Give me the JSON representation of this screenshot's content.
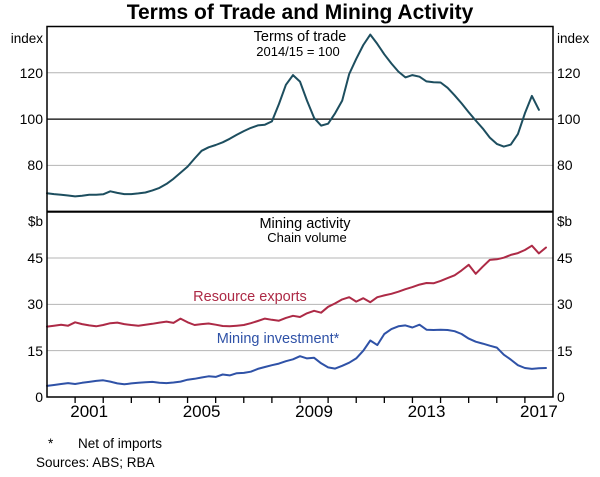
{
  "title": "Terms of Trade and Mining Activity",
  "footnotes": {
    "marker": "*",
    "text": "Net of imports",
    "sources": "Sources: ABS; RBA"
  },
  "colors": {
    "frame": "#000000",
    "grid": "#b4b4b4",
    "terms_of_trade": "#1d4e5f",
    "resource_exports": "#ad2a46",
    "mining_investment": "#2f52a7"
  },
  "x_axis": {
    "min": 2000,
    "max": 2018,
    "tick_years": [
      2001,
      2002,
      2003,
      2004,
      2005,
      2006,
      2007,
      2008,
      2009,
      2010,
      2011,
      2012,
      2013,
      2014,
      2015,
      2016,
      2017
    ],
    "label_years": [
      2001,
      2005,
      2009,
      2013,
      2017
    ]
  },
  "chart_data": [
    {
      "type": "line",
      "panel": "top",
      "label": "Terms of trade",
      "sublabel": "2014/15 = 100",
      "unit": "index",
      "ylim": [
        60,
        140
      ],
      "yticks": [
        80,
        100,
        120
      ],
      "reference_line": 100,
      "grid": true,
      "series": [
        {
          "name": "Terms of trade",
          "color_key": "terms_of_trade",
          "points": [
            [
              2000,
              68
            ],
            [
              2000.25,
              67.6
            ],
            [
              2000.5,
              67.3
            ],
            [
              2000.75,
              67
            ],
            [
              2001,
              66.6
            ],
            [
              2001.25,
              66.9
            ],
            [
              2001.5,
              67.3
            ],
            [
              2001.75,
              67.3
            ],
            [
              2002,
              67.5
            ],
            [
              2002.25,
              68.8
            ],
            [
              2002.5,
              68.1
            ],
            [
              2002.75,
              67.6
            ],
            [
              2003,
              67.6
            ],
            [
              2003.25,
              67.9
            ],
            [
              2003.5,
              68.3
            ],
            [
              2003.75,
              69.2
            ],
            [
              2004,
              70.3
            ],
            [
              2004.25,
              72
            ],
            [
              2004.5,
              74.2
            ],
            [
              2004.75,
              76.8
            ],
            [
              2005,
              79.5
            ],
            [
              2005.25,
              83
            ],
            [
              2005.5,
              86.3
            ],
            [
              2005.75,
              87.8
            ],
            [
              2006,
              88.8
            ],
            [
              2006.25,
              90
            ],
            [
              2006.5,
              91.5
            ],
            [
              2006.75,
              93.2
            ],
            [
              2007,
              94.8
            ],
            [
              2007.25,
              96.2
            ],
            [
              2007.5,
              97.3
            ],
            [
              2007.75,
              97.6
            ],
            [
              2008,
              99
            ],
            [
              2008.25,
              106.5
            ],
            [
              2008.5,
              114.8
            ],
            [
              2008.75,
              119
            ],
            [
              2009,
              116.2
            ],
            [
              2009.25,
              108
            ],
            [
              2009.5,
              100.5
            ],
            [
              2009.75,
              97.2
            ],
            [
              2010,
              98
            ],
            [
              2010.25,
              102.5
            ],
            [
              2010.5,
              108
            ],
            [
              2010.75,
              119.5
            ],
            [
              2011,
              126
            ],
            [
              2011.25,
              132
            ],
            [
              2011.5,
              136.5
            ],
            [
              2011.75,
              132.5
            ],
            [
              2012,
              128
            ],
            [
              2012.25,
              124
            ],
            [
              2012.5,
              120.5
            ],
            [
              2012.75,
              118
            ],
            [
              2013,
              119
            ],
            [
              2013.25,
              118.3
            ],
            [
              2013.5,
              116.3
            ],
            [
              2013.75,
              115.9
            ],
            [
              2014,
              115.8
            ],
            [
              2014.25,
              113.5
            ],
            [
              2014.5,
              110.3
            ],
            [
              2014.75,
              106.8
            ],
            [
              2015,
              103
            ],
            [
              2015.25,
              99.4
            ],
            [
              2015.5,
              96
            ],
            [
              2015.75,
              92
            ],
            [
              2016,
              89.3
            ],
            [
              2016.25,
              88.1
            ],
            [
              2016.5,
              89
            ],
            [
              2016.75,
              93.5
            ],
            [
              2017,
              102.5
            ],
            [
              2017.25,
              110
            ],
            [
              2017.5,
              104
            ]
          ]
        }
      ]
    },
    {
      "type": "line",
      "panel": "bottom",
      "label": "Mining activity",
      "sublabel": "Chain volume",
      "unit": "$b",
      "ylim": [
        0,
        60
      ],
      "yticks": [
        0,
        15,
        30,
        45
      ],
      "grid": true,
      "series": [
        {
          "name": "Resource exports",
          "color_key": "resource_exports",
          "points": [
            [
              2000,
              22.8
            ],
            [
              2000.25,
              23.1
            ],
            [
              2000.5,
              23.4
            ],
            [
              2000.75,
              23.1
            ],
            [
              2001,
              24.2
            ],
            [
              2001.25,
              23.6
            ],
            [
              2001.5,
              23.2
            ],
            [
              2001.75,
              22.9
            ],
            [
              2002,
              23.3
            ],
            [
              2002.25,
              23.9
            ],
            [
              2002.5,
              24.1
            ],
            [
              2002.75,
              23.6
            ],
            [
              2003,
              23.3
            ],
            [
              2003.25,
              23.1
            ],
            [
              2003.5,
              23.4
            ],
            [
              2003.75,
              23.7
            ],
            [
              2004,
              24.1
            ],
            [
              2004.25,
              24.4
            ],
            [
              2004.5,
              24
            ],
            [
              2004.75,
              25.4
            ],
            [
              2005,
              24.2
            ],
            [
              2005.25,
              23.3
            ],
            [
              2005.5,
              23.6
            ],
            [
              2005.75,
              23.8
            ],
            [
              2006,
              23.4
            ],
            [
              2006.25,
              23
            ],
            [
              2006.5,
              22.9
            ],
            [
              2006.75,
              23.1
            ],
            [
              2007,
              23.3
            ],
            [
              2007.25,
              23.9
            ],
            [
              2007.5,
              24.6
            ],
            [
              2007.75,
              25.4
            ],
            [
              2008,
              25
            ],
            [
              2008.25,
              24.7
            ],
            [
              2008.5,
              25.6
            ],
            [
              2008.75,
              26.3
            ],
            [
              2009,
              25.9
            ],
            [
              2009.25,
              27.1
            ],
            [
              2009.5,
              27.9
            ],
            [
              2009.75,
              27.3
            ],
            [
              2010,
              29.2
            ],
            [
              2010.25,
              30.3
            ],
            [
              2010.5,
              31.6
            ],
            [
              2010.75,
              32.3
            ],
            [
              2011,
              30.9
            ],
            [
              2011.25,
              32
            ],
            [
              2011.5,
              30.7
            ],
            [
              2011.75,
              32.3
            ],
            [
              2012,
              32.9
            ],
            [
              2012.25,
              33.4
            ],
            [
              2012.5,
              34.1
            ],
            [
              2012.75,
              34.9
            ],
            [
              2013,
              35.6
            ],
            [
              2013.25,
              36.4
            ],
            [
              2013.5,
              36.9
            ],
            [
              2013.75,
              36.8
            ],
            [
              2014,
              37.6
            ],
            [
              2014.25,
              38.5
            ],
            [
              2014.5,
              39.4
            ],
            [
              2014.75,
              41
            ],
            [
              2015,
              42.8
            ],
            [
              2015.25,
              39.9
            ],
            [
              2015.5,
              42.2
            ],
            [
              2015.75,
              44.4
            ],
            [
              2016,
              44.6
            ],
            [
              2016.25,
              45.1
            ],
            [
              2016.5,
              46
            ],
            [
              2016.75,
              46.6
            ],
            [
              2017,
              47.6
            ],
            [
              2017.25,
              49
            ],
            [
              2017.5,
              46.5
            ],
            [
              2017.75,
              48.4
            ]
          ]
        },
        {
          "name": "Mining investment*",
          "color_key": "mining_investment",
          "points": [
            [
              2000,
              3.6
            ],
            [
              2000.25,
              3.9
            ],
            [
              2000.5,
              4.2
            ],
            [
              2000.75,
              4.5
            ],
            [
              2001,
              4.2
            ],
            [
              2001.25,
              4.6
            ],
            [
              2001.5,
              4.9
            ],
            [
              2001.75,
              5.2
            ],
            [
              2002,
              5.4
            ],
            [
              2002.25,
              5
            ],
            [
              2002.5,
              4.4
            ],
            [
              2002.75,
              4.1
            ],
            [
              2003,
              4.4
            ],
            [
              2003.25,
              4.6
            ],
            [
              2003.5,
              4.8
            ],
            [
              2003.75,
              4.9
            ],
            [
              2004,
              4.6
            ],
            [
              2004.25,
              4.5
            ],
            [
              2004.5,
              4.7
            ],
            [
              2004.75,
              5
            ],
            [
              2005,
              5.6
            ],
            [
              2005.25,
              5.9
            ],
            [
              2005.5,
              6.3
            ],
            [
              2005.75,
              6.7
            ],
            [
              2006,
              6.5
            ],
            [
              2006.25,
              7.3
            ],
            [
              2006.5,
              7
            ],
            [
              2006.75,
              7.7
            ],
            [
              2007,
              7.8
            ],
            [
              2007.25,
              8.2
            ],
            [
              2007.5,
              9.1
            ],
            [
              2007.75,
              9.7
            ],
            [
              2008,
              10.3
            ],
            [
              2008.25,
              10.8
            ],
            [
              2008.5,
              11.6
            ],
            [
              2008.75,
              12.2
            ],
            [
              2009,
              13.2
            ],
            [
              2009.25,
              12.5
            ],
            [
              2009.5,
              12.7
            ],
            [
              2009.75,
              10.9
            ],
            [
              2010,
              9.6
            ],
            [
              2010.25,
              9.2
            ],
            [
              2010.5,
              10.1
            ],
            [
              2010.75,
              11.1
            ],
            [
              2011,
              12.5
            ],
            [
              2011.25,
              15
            ],
            [
              2011.5,
              18.3
            ],
            [
              2011.75,
              16.8
            ],
            [
              2012,
              20.4
            ],
            [
              2012.25,
              22
            ],
            [
              2012.5,
              22.9
            ],
            [
              2012.75,
              23.2
            ],
            [
              2013,
              22.5
            ],
            [
              2013.25,
              23.4
            ],
            [
              2013.5,
              21.8
            ],
            [
              2013.75,
              21.7
            ],
            [
              2014,
              21.8
            ],
            [
              2014.25,
              21.7
            ],
            [
              2014.5,
              21.3
            ],
            [
              2014.75,
              20.4
            ],
            [
              2015,
              18.9
            ],
            [
              2015.25,
              17.9
            ],
            [
              2015.5,
              17.3
            ],
            [
              2015.75,
              16.6
            ],
            [
              2016,
              16
            ],
            [
              2016.25,
              13.7
            ],
            [
              2016.5,
              12.1
            ],
            [
              2016.75,
              10.3
            ],
            [
              2017,
              9.4
            ],
            [
              2017.25,
              9.1
            ],
            [
              2017.5,
              9.3
            ],
            [
              2017.75,
              9.4
            ]
          ]
        }
      ]
    }
  ]
}
